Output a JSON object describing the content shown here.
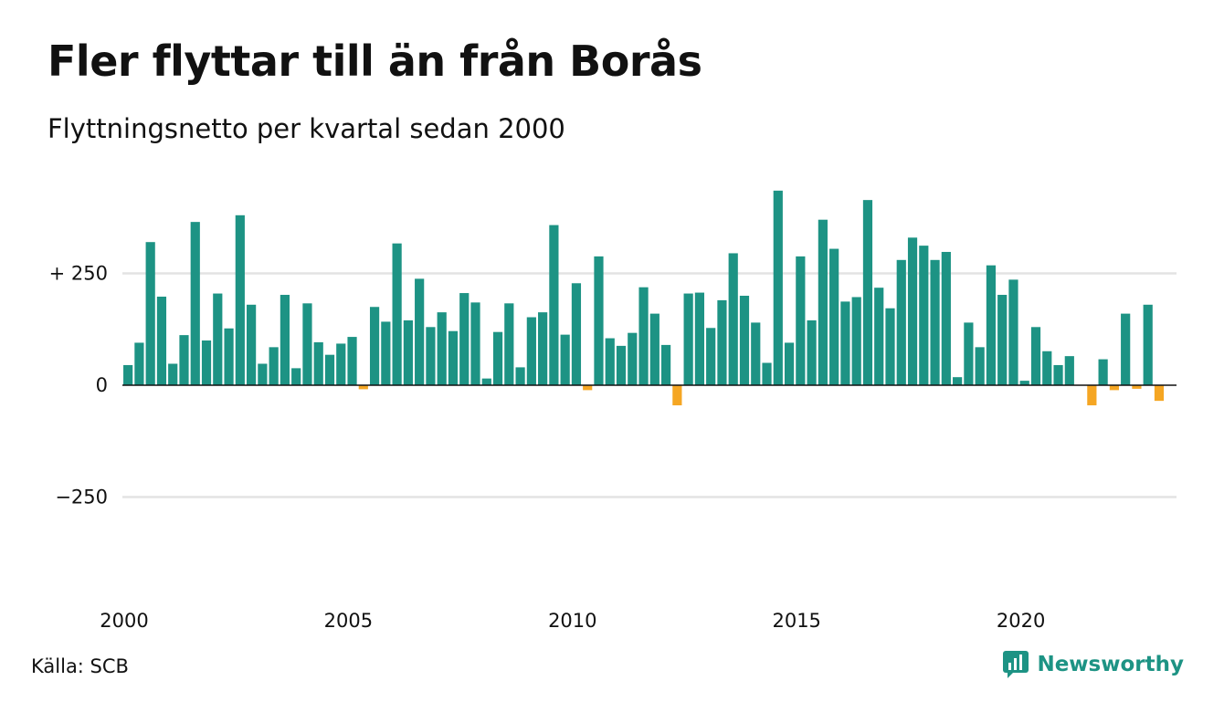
{
  "title": "Fler flyttar till än från Borås",
  "subtitle": "Flyttningsnetto per kvartal sedan 2000",
  "source": "Källa: SCB",
  "brand": {
    "name": "Newsworthy",
    "icon": "newsworthy-logo-icon",
    "color": "#1d9384"
  },
  "colors": {
    "positive": "#1d9384",
    "negative": "#f5a623",
    "grid": "#e3e3e3",
    "zero_line": "#111111"
  },
  "chart_data": {
    "type": "bar",
    "title": "Fler flyttar till än från Borås",
    "subtitle": "Flyttningsnetto per kvartal sedan 2000",
    "xlabel": "",
    "ylabel": "",
    "x_start_year": 2000,
    "quarters_per_year": 4,
    "ylim": [
      -470,
      440
    ],
    "y_ticks": [
      {
        "value": 250,
        "label": "+ 250"
      },
      {
        "value": 0,
        "label": "0"
      },
      {
        "value": -250,
        "label": "−250"
      }
    ],
    "x_ticks": [
      {
        "value": 2000,
        "label": "2000"
      },
      {
        "value": 2005,
        "label": "2005"
      },
      {
        "value": 2010,
        "label": "2010"
      },
      {
        "value": 2015,
        "label": "2015"
      },
      {
        "value": 2020,
        "label": "2020"
      }
    ],
    "grid": true,
    "values": [
      45,
      95,
      320,
      198,
      48,
      112,
      365,
      100,
      205,
      127,
      380,
      180,
      48,
      85,
      202,
      38,
      183,
      96,
      68,
      93,
      108,
      -9,
      175,
      142,
      317,
      145,
      238,
      130,
      163,
      121,
      206,
      185,
      15,
      119,
      183,
      40,
      152,
      163,
      358,
      113,
      228,
      -11,
      288,
      105,
      88,
      117,
      219,
      160,
      90,
      -45,
      205,
      207,
      128,
      190,
      295,
      200,
      140,
      50,
      435,
      95,
      288,
      145,
      370,
      305,
      187,
      197,
      414,
      218,
      172,
      280,
      330,
      312,
      280,
      298,
      18,
      140,
      85,
      268,
      202,
      236,
      10,
      130,
      76,
      45,
      65,
      0,
      -45,
      58,
      -11,
      160,
      -8,
      180,
      -35
    ]
  }
}
